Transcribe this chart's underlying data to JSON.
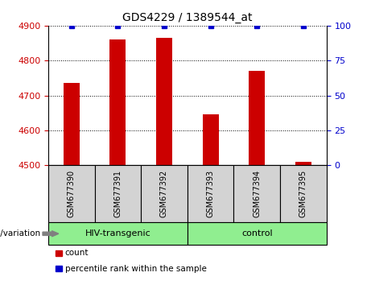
{
  "title": "GDS4229 / 1389544_at",
  "samples": [
    "GSM677390",
    "GSM677391",
    "GSM677392",
    "GSM677393",
    "GSM677394",
    "GSM677395"
  ],
  "bar_values": [
    4735,
    4860,
    4865,
    4645,
    4770,
    4510
  ],
  "percentile_values": [
    100,
    100,
    100,
    100,
    100,
    100
  ],
  "bar_color": "#cc0000",
  "percentile_color": "#0000cc",
  "ylim_left": [
    4500,
    4900
  ],
  "ylim_right": [
    0,
    100
  ],
  "yticks_left": [
    4500,
    4600,
    4700,
    4800,
    4900
  ],
  "yticks_right": [
    0,
    25,
    50,
    75,
    100
  ],
  "groups": [
    {
      "label": "HIV-transgenic",
      "start": 0,
      "end": 3,
      "color": "#90ee90"
    },
    {
      "label": "control",
      "start": 3,
      "end": 6,
      "color": "#90ee90"
    }
  ],
  "legend_items": [
    {
      "label": "count",
      "color": "#cc0000"
    },
    {
      "label": "percentile rank within the sample",
      "color": "#0000cc"
    }
  ],
  "plot_bg_color": "#ffffff",
  "tick_label_color_left": "#cc0000",
  "tick_label_color_right": "#0000cc",
  "bar_width": 0.35,
  "sample_box_color": "#d3d3d3",
  "figsize": [
    4.61,
    3.54
  ],
  "dpi": 100
}
